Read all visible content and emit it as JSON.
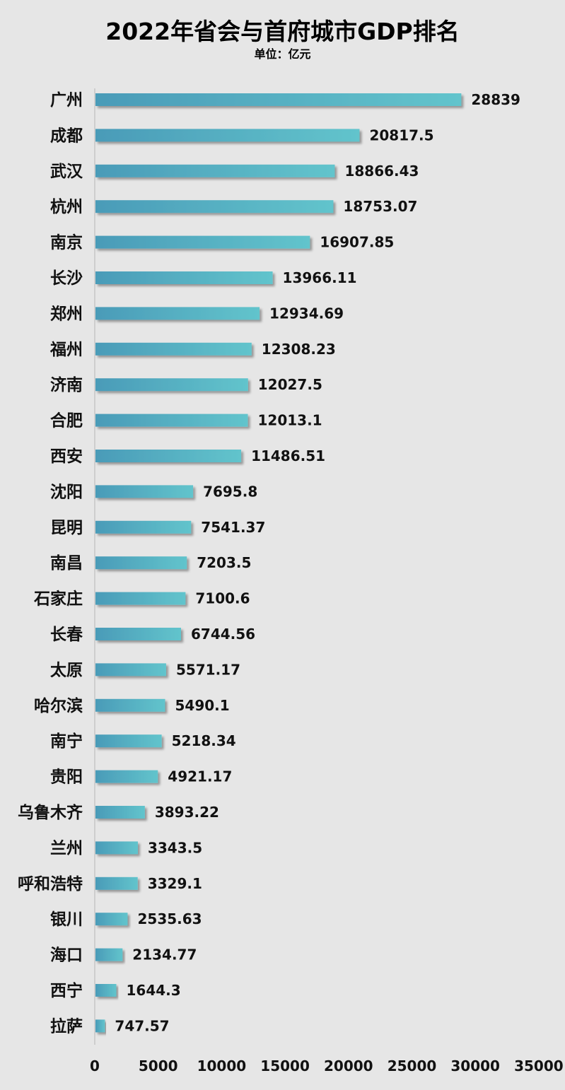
{
  "chart_data": {
    "type": "bar",
    "orientation": "horizontal",
    "title": "2022年省会与首府城市GDP排名",
    "subtitle": "单位：亿元",
    "categories": [
      "广州",
      "成都",
      "武汉",
      "杭州",
      "南京",
      "长沙",
      "郑州",
      "福州",
      "济南",
      "合肥",
      "西安",
      "沈阳",
      "昆明",
      "南昌",
      "石家庄",
      "长春",
      "太原",
      "哈尔滨",
      "南宁",
      "贵阳",
      "乌鲁木齐",
      "兰州",
      "呼和浩特",
      "银川",
      "海口",
      "西宁",
      "拉萨"
    ],
    "values": [
      28839,
      20817.5,
      18866.43,
      18753.07,
      16907.85,
      13966.11,
      12934.69,
      12308.23,
      12027.5,
      12013.1,
      11486.51,
      7695.8,
      7541.37,
      7203.5,
      7100.6,
      6744.56,
      5571.17,
      5490.1,
      5218.34,
      4921.17,
      3893.22,
      3343.5,
      3329.1,
      2535.63,
      2134.77,
      1644.3,
      747.57
    ],
    "value_labels": [
      "28839",
      "20817.5",
      "18866.43",
      "18753.07",
      "16907.85",
      "13966.11",
      "12934.69",
      "12308.23",
      "12027.5",
      "12013.1",
      "11486.51",
      "7695.8",
      "7541.37",
      "7203.5",
      "7100.6",
      "6744.56",
      "5571.17",
      "5490.1",
      "5218.34",
      "4921.17",
      "3893.22",
      "3343.5",
      "3329.1",
      "2535.63",
      "2134.77",
      "1644.3",
      "747.57"
    ],
    "xlim": [
      0,
      35000
    ],
    "x_ticks": [
      "0",
      "5000",
      "10000",
      "15000",
      "20000",
      "25000",
      "30000",
      "35000"
    ],
    "grid": false,
    "bar_color_start": "#4a9bb8",
    "bar_color_end": "#62c4cc",
    "background": "#e6e6e6"
  }
}
